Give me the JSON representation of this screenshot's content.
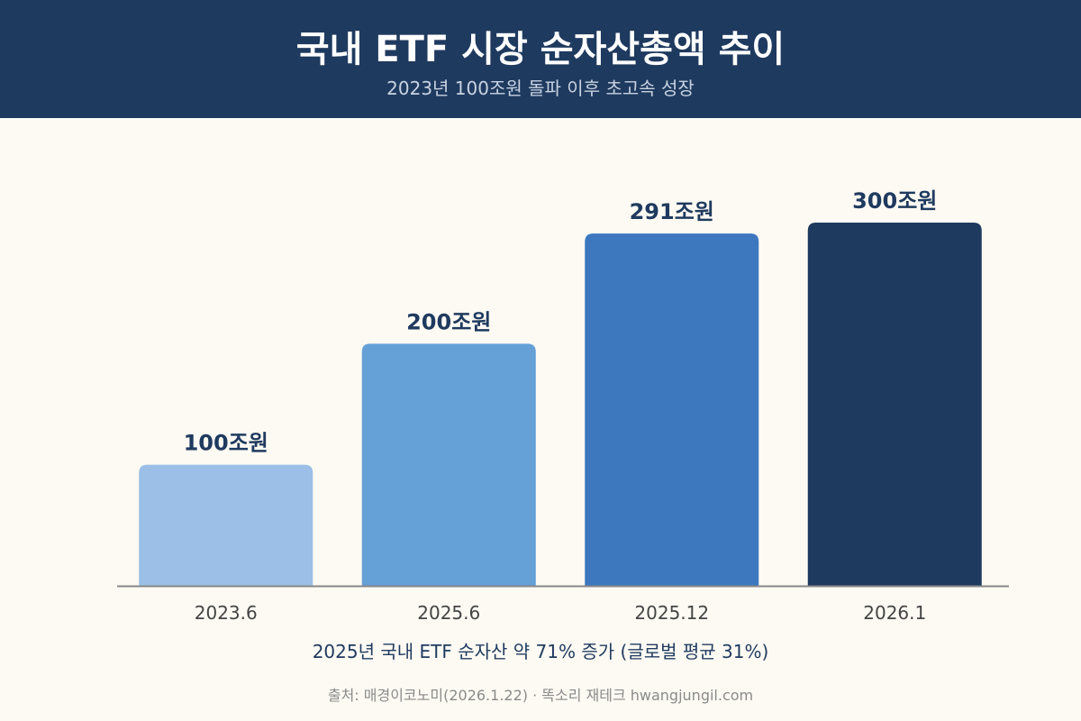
{
  "header": {
    "title": "국내 ETF 시장 순자산총액 추이",
    "subtitle": "2023년 100조원 돌파 이후 초고속 성장"
  },
  "chart_data": {
    "type": "bar",
    "categories": [
      "2023.6",
      "2025.6",
      "2025.12",
      "2026.1"
    ],
    "values": [
      100,
      200,
      291,
      300
    ],
    "value_labels": [
      "100조원",
      "200조원",
      "291조원",
      "300조원"
    ],
    "bar_colors": [
      "#9bbfe6",
      "#65a0d7",
      "#3d78bf",
      "#1f3a5f"
    ],
    "ylim": [
      0,
      300
    ],
    "grid": false,
    "unit": "조원"
  },
  "footer": {
    "annotation": "2025년 국내 ETF 순자산 약 71% 증가 (글로벌 평균 31%)",
    "source": "출처: 매경이코노미(2026.1.22) · 똑소리 재테크 hwangjungil.com"
  },
  "colors": {
    "header_bg": "#1f3a5f",
    "page_bg": "#fdfaf3",
    "label_text": "#1f3a5f",
    "axis_text": "#444444",
    "axis_line": "#888888"
  }
}
